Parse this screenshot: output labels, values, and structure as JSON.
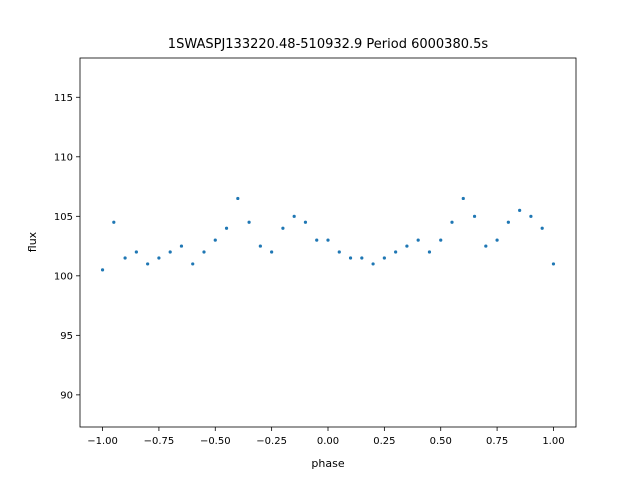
{
  "chart_data": {
    "type": "scatter",
    "title": "1SWASPJ133220.48-510932.9 Period 6000380.5s",
    "xlabel": "phase",
    "ylabel": "flux",
    "xlim": [
      -1.1,
      1.1
    ],
    "ylim": [
      87.3,
      118.3
    ],
    "grid": false,
    "marker_color": "#1f77b4",
    "x_ticks": [
      {
        "value": -1.0,
        "label": "−1.00"
      },
      {
        "value": -0.75,
        "label": "−0.75"
      },
      {
        "value": -0.5,
        "label": "−0.50"
      },
      {
        "value": -0.25,
        "label": "−0.25"
      },
      {
        "value": 0.0,
        "label": "0.00"
      },
      {
        "value": 0.25,
        "label": "0.25"
      },
      {
        "value": 0.5,
        "label": "0.50"
      },
      {
        "value": 0.75,
        "label": "0.75"
      },
      {
        "value": 1.0,
        "label": "1.00"
      }
    ],
    "y_ticks": [
      {
        "value": 90,
        "label": "90"
      },
      {
        "value": 95,
        "label": "95"
      },
      {
        "value": 100,
        "label": "100"
      },
      {
        "value": 105,
        "label": "105"
      },
      {
        "value": 110,
        "label": "110"
      },
      {
        "value": 115,
        "label": "115"
      }
    ],
    "series": [
      {
        "x": [
          -1.0,
          -0.95,
          -0.9,
          -0.85,
          -0.8,
          -0.75,
          -0.7,
          -0.65,
          -0.6,
          -0.55,
          -0.5,
          -0.45,
          -0.4,
          -0.35,
          -0.3,
          -0.25,
          -0.2,
          -0.15,
          -0.1,
          -0.05,
          0.0,
          0.05,
          0.1,
          0.15,
          0.2,
          0.25,
          0.3,
          0.35,
          0.4,
          0.45,
          0.5,
          0.55,
          0.6,
          0.65,
          0.7,
          0.75,
          0.8,
          0.85,
          0.9,
          0.95,
          1.0
        ],
        "y": [
          100.5,
          104.5,
          101.5,
          102.0,
          101.0,
          101.5,
          102.0,
          102.5,
          101.0,
          102.0,
          103.0,
          104.0,
          106.5,
          104.5,
          102.5,
          102.0,
          104.0,
          105.0,
          104.5,
          103.0,
          103.0,
          102.0,
          101.5,
          101.5,
          101.0,
          101.5,
          102.0,
          102.5,
          103.0,
          102.0,
          103.0,
          104.5,
          106.5,
          105.0,
          102.5,
          103.0,
          104.5,
          105.5,
          105.0,
          104.0,
          101.0
        ]
      }
    ]
  }
}
